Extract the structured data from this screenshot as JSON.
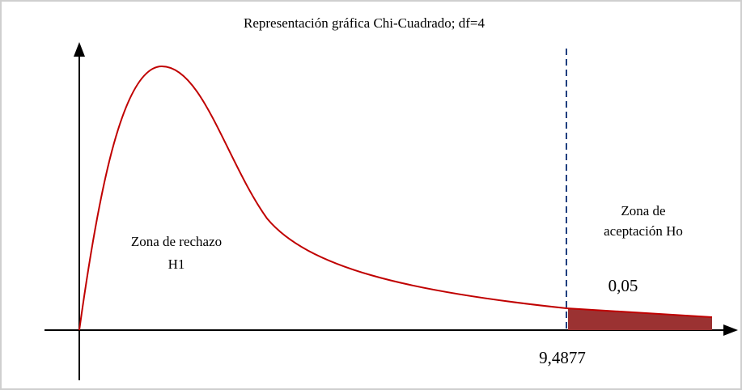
{
  "title": "Representación gráfica Chi-Cuadrado; df=4",
  "regions": [
    {
      "lines": [
        "Zona de rechazo",
        "H1"
      ]
    },
    {
      "lines": [
        "Zona de",
        "aceptación Ho"
      ]
    }
  ],
  "alpha": "0,05",
  "critical_value": "9,4877"
}
